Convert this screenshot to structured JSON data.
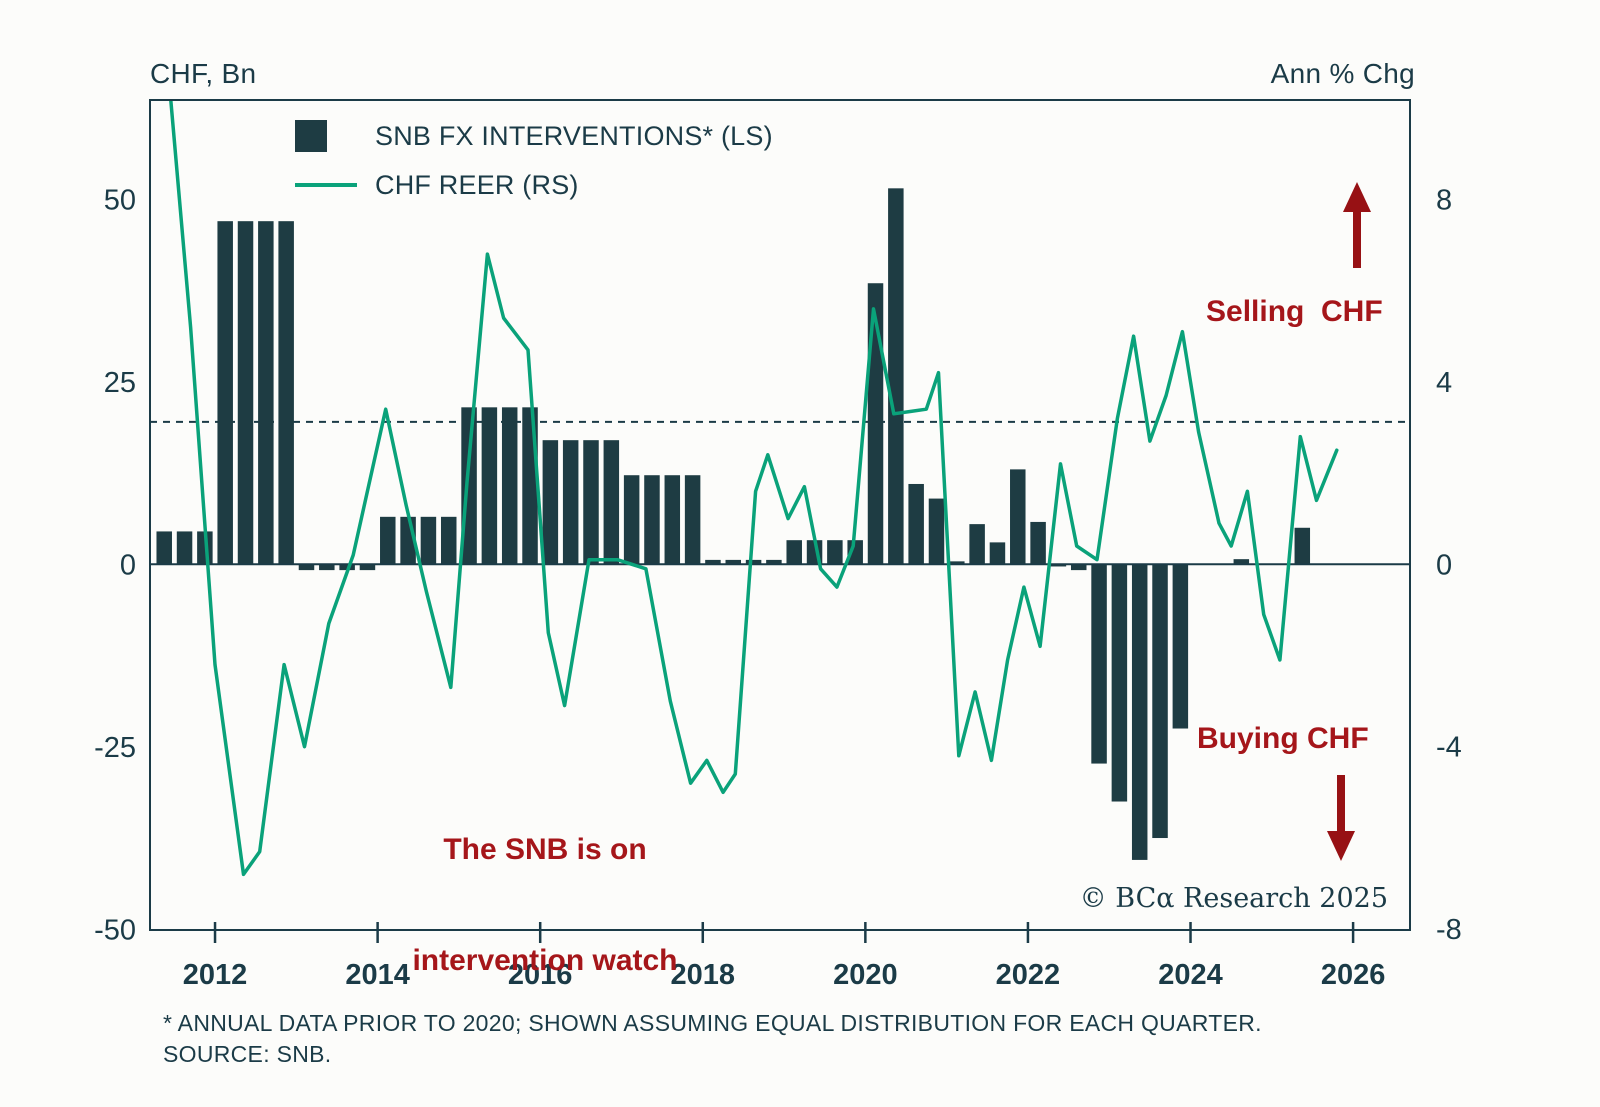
{
  "axes": {
    "left_title": "CHF, Bn",
    "right_title": "Ann % Chg"
  },
  "legend": {
    "bars": "SNB FX INTERVENTIONS* (LS)",
    "line": "CHF REER (RS)"
  },
  "annotations": {
    "selling": "Selling  CHF",
    "buying": "Buying CHF",
    "watch_line1": "The SNB is on",
    "watch_line2": "intervention watch",
    "copyright": "© BCα Research 2025"
  },
  "footnotes": {
    "line1": "* ANNUAL DATA PRIOR TO 2020; SHOWN ASSUMING EQUAL DISTRIBUTION FOR EACH QUARTER.",
    "line2": "SOURCE: SNB."
  },
  "colors": {
    "background": "#fcfcfa",
    "text": "#1b3b47",
    "bar": "#1e3c43",
    "line": "#0aa27a",
    "red": "#a5161a",
    "arrow": "#971114",
    "frame": "#1b3b47"
  },
  "chart_data": {
    "type": "bar",
    "title": "",
    "x_range": [
      2011.2,
      2026.7
    ],
    "x_ticks": [
      2012,
      2014,
      2016,
      2018,
      2020,
      2022,
      2024,
      2026
    ],
    "left_axis": {
      "label": "CHF, Bn",
      "range": [
        -50.1,
        63.6
      ],
      "ticks": [
        50,
        25,
        0,
        -25,
        -50
      ]
    },
    "right_axis": {
      "label": "Ann % Chg",
      "range": [
        -8.02,
        10.18
      ],
      "ticks": [
        8,
        4,
        0,
        -4,
        -8
      ]
    },
    "dashed_reference_left_value": 19.5,
    "grid": false,
    "legend_position": "top-left-inside",
    "series": [
      {
        "name": "SNB FX INTERVENTIONS* (LS)",
        "type": "bar",
        "axis": "left",
        "points": [
          [
            2011.375,
            4.5
          ],
          [
            2011.625,
            4.5
          ],
          [
            2011.875,
            4.5
          ],
          [
            2012.125,
            47
          ],
          [
            2012.375,
            47
          ],
          [
            2012.625,
            47
          ],
          [
            2012.875,
            47
          ],
          [
            2013.125,
            -0.8
          ],
          [
            2013.375,
            -0.8
          ],
          [
            2013.625,
            -0.8
          ],
          [
            2013.875,
            -0.8
          ],
          [
            2014.125,
            6.5
          ],
          [
            2014.375,
            6.5
          ],
          [
            2014.625,
            6.5
          ],
          [
            2014.875,
            6.5
          ],
          [
            2015.125,
            21.5
          ],
          [
            2015.375,
            21.5
          ],
          [
            2015.625,
            21.5
          ],
          [
            2015.875,
            21.5
          ],
          [
            2016.125,
            17
          ],
          [
            2016.375,
            17
          ],
          [
            2016.625,
            17
          ],
          [
            2016.875,
            17
          ],
          [
            2017.125,
            12.2
          ],
          [
            2017.375,
            12.2
          ],
          [
            2017.625,
            12.2
          ],
          [
            2017.875,
            12.2
          ],
          [
            2018.125,
            0.6
          ],
          [
            2018.375,
            0.6
          ],
          [
            2018.625,
            0.6
          ],
          [
            2018.875,
            0.6
          ],
          [
            2019.125,
            3.3
          ],
          [
            2019.375,
            3.3
          ],
          [
            2019.625,
            3.3
          ],
          [
            2019.875,
            3.3
          ],
          [
            2020.125,
            38.5
          ],
          [
            2020.375,
            51.5
          ],
          [
            2020.625,
            11
          ],
          [
            2020.875,
            9
          ],
          [
            2021.125,
            0.4
          ],
          [
            2021.375,
            5.5
          ],
          [
            2021.625,
            3
          ],
          [
            2021.875,
            13
          ],
          [
            2022.125,
            5.8
          ],
          [
            2022.375,
            -0.3
          ],
          [
            2022.625,
            -0.8
          ],
          [
            2022.875,
            -27.3
          ],
          [
            2023.125,
            -32.5
          ],
          [
            2023.375,
            -40.5
          ],
          [
            2023.625,
            -37.5
          ],
          [
            2023.875,
            -22.5
          ],
          [
            2024.625,
            0.7
          ],
          [
            2025.375,
            5
          ]
        ]
      },
      {
        "name": "CHF REER (RS)",
        "type": "line",
        "axis": "right",
        "points": [
          [
            2011.45,
            10.3
          ],
          [
            2011.7,
            5.2
          ],
          [
            2012.0,
            -2.2
          ],
          [
            2012.35,
            -6.8
          ],
          [
            2012.55,
            -6.3
          ],
          [
            2012.85,
            -2.2
          ],
          [
            2013.1,
            -4.0
          ],
          [
            2013.4,
            -1.3
          ],
          [
            2013.7,
            0.2
          ],
          [
            2014.1,
            3.4
          ],
          [
            2014.35,
            1.3
          ],
          [
            2014.6,
            -0.6
          ],
          [
            2014.9,
            -2.7
          ],
          [
            2015.1,
            1.8
          ],
          [
            2015.35,
            6.8
          ],
          [
            2015.55,
            5.4
          ],
          [
            2015.85,
            4.7
          ],
          [
            2016.1,
            -1.5
          ],
          [
            2016.3,
            -3.1
          ],
          [
            2016.6,
            0.1
          ],
          [
            2016.95,
            0.1
          ],
          [
            2017.3,
            -0.1
          ],
          [
            2017.6,
            -3.0
          ],
          [
            2017.85,
            -4.8
          ],
          [
            2018.05,
            -4.3
          ],
          [
            2018.25,
            -5.0
          ],
          [
            2018.4,
            -4.6
          ],
          [
            2018.65,
            1.6
          ],
          [
            2018.8,
            2.4
          ],
          [
            2019.05,
            1.0
          ],
          [
            2019.25,
            1.7
          ],
          [
            2019.45,
            -0.1
          ],
          [
            2019.65,
            -0.5
          ],
          [
            2019.85,
            0.4
          ],
          [
            2020.1,
            5.6
          ],
          [
            2020.35,
            3.3
          ],
          [
            2020.55,
            3.35
          ],
          [
            2020.75,
            3.4
          ],
          [
            2020.9,
            4.2
          ],
          [
            2021.15,
            -4.2
          ],
          [
            2021.35,
            -2.8
          ],
          [
            2021.55,
            -4.3
          ],
          [
            2021.75,
            -2.1
          ],
          [
            2021.95,
            -0.5
          ],
          [
            2022.15,
            -1.8
          ],
          [
            2022.4,
            2.2
          ],
          [
            2022.6,
            0.4
          ],
          [
            2022.85,
            0.1
          ],
          [
            2023.1,
            3.2
          ],
          [
            2023.3,
            5.0
          ],
          [
            2023.5,
            2.7
          ],
          [
            2023.7,
            3.7
          ],
          [
            2023.9,
            5.1
          ],
          [
            2024.1,
            2.9
          ],
          [
            2024.35,
            0.9
          ],
          [
            2024.5,
            0.4
          ],
          [
            2024.7,
            1.6
          ],
          [
            2024.9,
            -1.1
          ],
          [
            2025.1,
            -2.1
          ],
          [
            2025.35,
            2.8
          ],
          [
            2025.55,
            1.4
          ],
          [
            2025.8,
            2.5
          ]
        ]
      }
    ]
  }
}
